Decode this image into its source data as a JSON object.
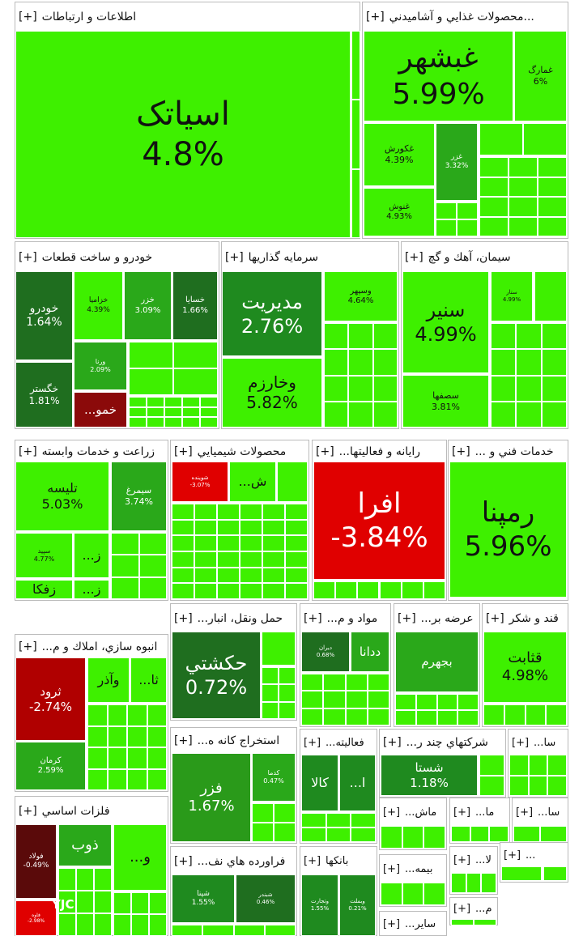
{
  "sectors": [
    {
      "title": "اطلاعات و ارتباطات",
      "expand": "[+]",
      "tiles": [
        {
          "name": "اسیاتک",
          "change": "4.8%"
        }
      ]
    },
    {
      "title": "...محصولات غذايي و آشاميدني",
      "expand": "[+]",
      "tiles": [
        {
          "name": "غبشهر",
          "change": "5.99%"
        },
        {
          "name": "غمارگ",
          "change": "6%"
        },
        {
          "name": "غكورش",
          "change": "4.39%"
        },
        {
          "name": "غزر",
          "change": "3.32%"
        },
        {
          "name": "غنوش",
          "change": "4.93%"
        }
      ]
    },
    {
      "title": "خودرو و ساخت قطعات",
      "expand": "[+]",
      "tiles": [
        {
          "name": "خودرو",
          "change": "1.64%"
        },
        {
          "name": "خگستر",
          "change": "1.81%"
        },
        {
          "name": "خزامیا",
          "change": "4.39%"
        },
        {
          "name": "خزر",
          "change": "3.09%"
        },
        {
          "name": "خسایا",
          "change": "1.66%"
        },
        {
          "name": "ورنا",
          "change": "2.09%"
        },
        {
          "name": "خمو..."
        }
      ]
    },
    {
      "title": "سرمايه گذاريها",
      "expand": "[+]",
      "tiles": [
        {
          "name": "مديريت",
          "change": "2.76%"
        },
        {
          "name": "وخارزم",
          "change": "5.82%"
        },
        {
          "name": "وسپهر",
          "change": "4.64%"
        }
      ]
    },
    {
      "title": "سيمان، آهك و گچ",
      "expand": "[+]",
      "tiles": [
        {
          "name": "سنير",
          "change": "4.99%"
        },
        {
          "name": "سصفها",
          "change": "3.81%"
        },
        {
          "name": "ستار",
          "change": "4.99%"
        }
      ]
    },
    {
      "title": "زراعت و خدمات وابسته",
      "expand": "[+]",
      "tiles": [
        {
          "name": "تليسه",
          "change": "5.03%"
        },
        {
          "name": "سيمرغ",
          "change": "3.74%"
        },
        {
          "name": "سپيد",
          "change": "4.77%"
        },
        {
          "name": "ز..."
        },
        {
          "name": "زفكا"
        },
        {
          "name": "ز..."
        }
      ]
    },
    {
      "title": "محصولات شيميايي",
      "expand": "[+]",
      "tiles": [
        {
          "name": "شوينده",
          "change": "-3.07%"
        },
        {
          "name": "ش..."
        }
      ]
    },
    {
      "title": "رايانه و فعاليتها...",
      "expand": "[+]",
      "tiles": [
        {
          "name": "افرا",
          "change": "-3.84%"
        }
      ]
    },
    {
      "title": "خدمات فني و ...",
      "expand": "[+]",
      "tiles": [
        {
          "name": "رمپنا",
          "change": "5.96%"
        }
      ]
    },
    {
      "title": "انبوه سازي، املاك و م...",
      "expand": "[+]",
      "tiles": [
        {
          "name": "ثرود",
          "change": "-2.74%"
        },
        {
          "name": "وآذر"
        },
        {
          "name": "ثا..."
        },
        {
          "name": "كرمان",
          "change": "2.59%"
        }
      ]
    },
    {
      "title": "حمل ونقل، انبار...",
      "expand": "[+]",
      "tiles": [
        {
          "name": "حكشتي",
          "change": "0.72%"
        }
      ]
    },
    {
      "title": "مواد و م...",
      "expand": "[+]",
      "tiles": [
        {
          "name": "ديران",
          "change": "0.68%"
        },
        {
          "name": "ددانا"
        }
      ]
    },
    {
      "title": "عرضه بر...",
      "expand": "[+]",
      "tiles": [
        {
          "name": "بجهرم"
        }
      ]
    },
    {
      "title": "قند و شكر",
      "expand": "[+]",
      "tiles": [
        {
          "name": "قثابت",
          "change": "4.98%"
        }
      ]
    },
    {
      "title": "استخراج كانه ه...",
      "expand": "[+]",
      "tiles": [
        {
          "name": "فزر",
          "change": "1.67%"
        },
        {
          "name": "كدما",
          "change": "0.47%"
        }
      ]
    },
    {
      "title": "فعاليته...",
      "expand": "[+]",
      "tiles": [
        {
          "name": "كالا"
        },
        {
          "name": "ا..."
        }
      ]
    },
    {
      "title": "شركتهاي چند ر...",
      "expand": "[+]",
      "tiles": [
        {
          "name": "شستا",
          "change": "1.18%"
        }
      ]
    },
    {
      "title": "سا...",
      "expand": "[+]",
      "tiles": []
    },
    {
      "title": "فلزات اساسي",
      "expand": "[+]",
      "tiles": [
        {
          "name": "فولاد",
          "change": "-0.49%"
        },
        {
          "name": "ذوب"
        },
        {
          "name": "و..."
        },
        {
          "name": "فاوه",
          "change": "-2.98%"
        }
      ]
    },
    {
      "title": "فراورده هاي نف...",
      "expand": "[+]",
      "tiles": [
        {
          "name": "شپنا",
          "change": "1.55%"
        },
        {
          "name": "شبندر",
          "change": "0.46%"
        }
      ]
    },
    {
      "title": "بانكها",
      "expand": "[+]",
      "tiles": [
        {
          "name": "وتجارت",
          "change": "1.55%"
        },
        {
          "name": "وبملت",
          "change": "0.21%"
        }
      ]
    },
    {
      "title": "ماش...",
      "expand": "[+]",
      "tiles": []
    },
    {
      "title": "ما...",
      "expand": "[+]",
      "tiles": []
    },
    {
      "title": "سا...",
      "expand": "[+]",
      "tiles": []
    },
    {
      "title": "بيمه...",
      "expand": "[+]",
      "tiles": []
    },
    {
      "title": "لا...",
      "expand": "[+]",
      "tiles": []
    },
    {
      "title": "...",
      "expand": "[+]",
      "tiles": []
    },
    {
      "title": "م...",
      "expand": "[+]",
      "tiles": []
    },
    {
      "title": "ساير...",
      "expand": "[+]",
      "tiles": []
    }
  ],
  "watermark": "YJC"
}
